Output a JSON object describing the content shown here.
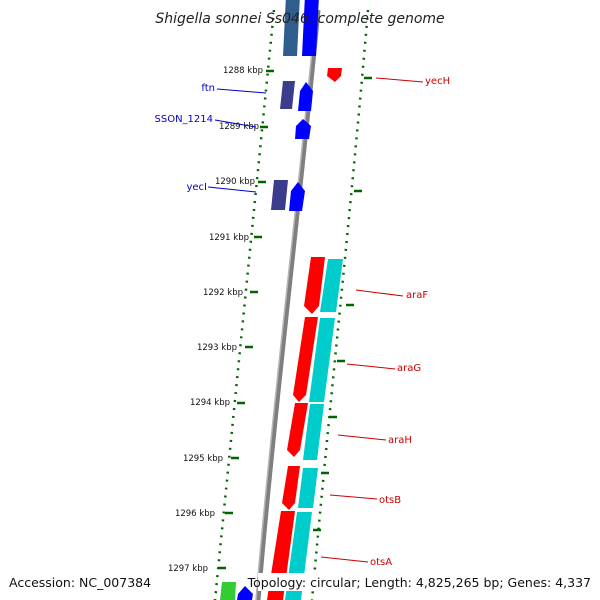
{
  "title": "Shigella sonnei Ss046, complete genome",
  "footer": {
    "accession": "Accession: NC_007384",
    "summary": "Topology: circular; Length: 4,825,265 bp; Genes: 4,337"
  },
  "ticks": [
    "1288 kbp",
    "1289 kbp",
    "1290 kbp",
    "1291 kbp",
    "1292 kbp",
    "1293 kbp",
    "1294 kbp",
    "1295 kbp",
    "1296 kbp",
    "1297 kbp"
  ],
  "genes_left": [
    "ftn",
    "SSON_1214",
    "yecI"
  ],
  "genes_right": [
    "yecH",
    "araF",
    "araG",
    "araH",
    "otsB",
    "otsA"
  ],
  "colors": {
    "backbone": "#7f7f7f",
    "tick": "#006400",
    "forward_gene": "#0000ff",
    "reverse_gene": "#ff0000",
    "forward_feature": "#3c3c8c",
    "reverse_feature": "#00cccc",
    "left_label": "#0000cc",
    "right_label": "#cc0000"
  }
}
